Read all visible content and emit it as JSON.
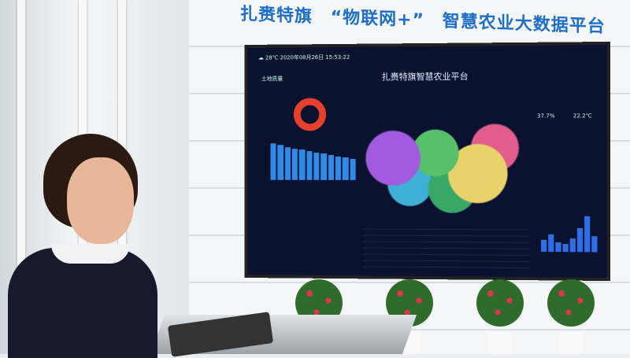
{
  "wall_sign": {
    "part1": "扎赉特旗",
    "part2": "“物联网+”",
    "part3": "智慧农业大数据平台"
  },
  "screen": {
    "weather": "28℃",
    "date": "2020年08月26日",
    "time": "15:53:22",
    "title": "扎赉特旗智慧农业平台",
    "panel_left": "土地质量",
    "stat_humidity": "37.7%",
    "stat_temp": "22.2℃"
  },
  "colors": {
    "sign_blue": "#1f6fc9",
    "screen_bg": "#0b1230",
    "donut_red": "#e8402c",
    "bar_blue": "#2e8ce8"
  }
}
